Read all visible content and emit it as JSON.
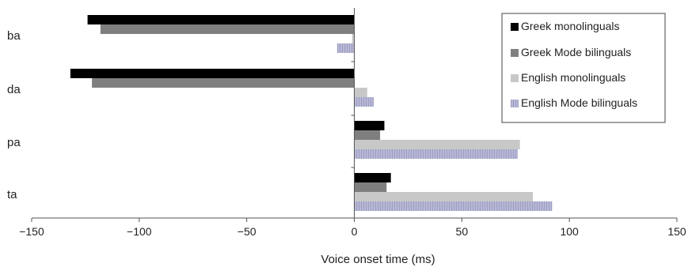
{
  "chart_data": {
    "type": "bar",
    "orientation": "horizontal",
    "title": "",
    "xlabel": "Voice onset time (ms)",
    "ylabel": "",
    "xlim": [
      -150,
      150
    ],
    "x_ticks": [
      -150,
      -100,
      -50,
      0,
      50,
      100,
      150
    ],
    "categories": [
      "ba",
      "da",
      "pa",
      "ta"
    ],
    "series": [
      {
        "name": "Greek monolinguals",
        "color": "#000000",
        "values": [
          -124,
          -132,
          14,
          17
        ]
      },
      {
        "name": "Greek Mode bilinguals",
        "color": "#7f7f7f",
        "values": [
          -118,
          -122,
          12,
          15
        ]
      },
      {
        "name": "English monolinguals",
        "color": "#c8c8c8",
        "values": [
          -1,
          6,
          77,
          83
        ]
      },
      {
        "name": "English Mode bilinguals",
        "color": "#b4b4d2",
        "pattern": "hatched",
        "values": [
          -8,
          9,
          76,
          92
        ]
      }
    ],
    "legend_position": "top-right",
    "grid": false
  }
}
